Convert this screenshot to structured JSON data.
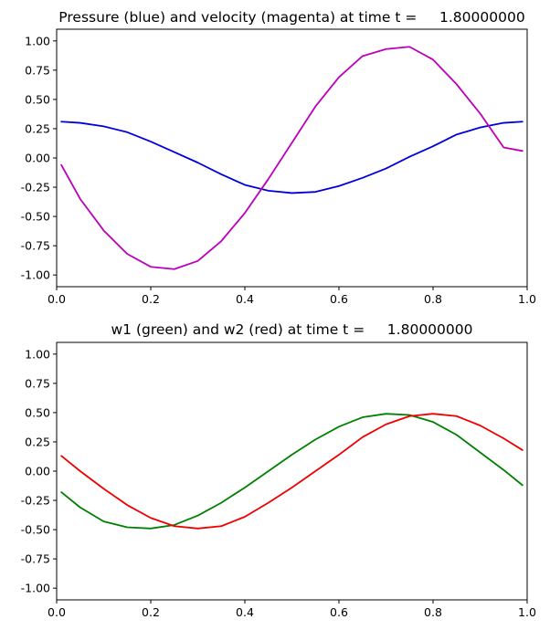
{
  "chart_data": [
    {
      "type": "line",
      "title": "Pressure (blue) and velocity (magenta) at time t =     1.80000000",
      "xlabel": "",
      "ylabel": "",
      "xlim": [
        0,
        1
      ],
      "ylim": [
        -1.1,
        1.1
      ],
      "xticks": [
        "0.0",
        "0.2",
        "0.4",
        "0.6",
        "0.8",
        "1.0"
      ],
      "yticks": [
        "-1.00",
        "-0.75",
        "-0.50",
        "-0.25",
        "0.00",
        "0.25",
        "0.50",
        "0.75",
        "1.00"
      ],
      "grid": false,
      "series": [
        {
          "color": "#0000dd",
          "x": [
            0.01,
            0.05,
            0.1,
            0.15,
            0.2,
            0.25,
            0.3,
            0.35,
            0.4,
            0.45,
            0.5,
            0.55,
            0.6,
            0.65,
            0.7,
            0.75,
            0.8,
            0.85,
            0.9,
            0.95,
            0.99
          ],
          "values": [
            0.31,
            0.3,
            0.27,
            0.22,
            0.14,
            0.05,
            -0.04,
            -0.14,
            -0.23,
            -0.28,
            -0.3,
            -0.29,
            -0.24,
            -0.17,
            -0.09,
            0.01,
            0.1,
            0.2,
            0.26,
            0.3,
            0.31
          ]
        },
        {
          "color": "#bb00bb",
          "x": [
            0.01,
            0.05,
            0.1,
            0.15,
            0.2,
            0.25,
            0.3,
            0.35,
            0.4,
            0.45,
            0.5,
            0.55,
            0.6,
            0.65,
            0.7,
            0.75,
            0.8,
            0.85,
            0.9,
            0.95,
            0.99
          ],
          "values": [
            -0.06,
            -0.35,
            -0.62,
            -0.82,
            -0.93,
            -0.95,
            -0.88,
            -0.71,
            -0.47,
            -0.18,
            0.13,
            0.44,
            0.69,
            0.87,
            0.93,
            0.95,
            0.84,
            0.63,
            0.38,
            0.09,
            0.06
          ]
        }
      ]
    },
    {
      "type": "line",
      "title": "w1 (green) and w2 (red) at time t =     1.80000000",
      "xlabel": "",
      "ylabel": "",
      "xlim": [
        0,
        1
      ],
      "ylim": [
        -1.1,
        1.1
      ],
      "xticks": [
        "0.0",
        "0.2",
        "0.4",
        "0.6",
        "0.8",
        "1.0"
      ],
      "yticks": [
        "-1.00",
        "-0.75",
        "-0.50",
        "-0.25",
        "0.00",
        "0.25",
        "0.50",
        "0.75",
        "1.00"
      ],
      "grid": false,
      "series": [
        {
          "color": "#008000",
          "x": [
            0.01,
            0.05,
            0.1,
            0.15,
            0.2,
            0.25,
            0.3,
            0.35,
            0.4,
            0.45,
            0.5,
            0.55,
            0.6,
            0.65,
            0.7,
            0.75,
            0.8,
            0.85,
            0.9,
            0.95,
            0.99
          ],
          "values": [
            -0.18,
            -0.31,
            -0.43,
            -0.48,
            -0.49,
            -0.46,
            -0.38,
            -0.27,
            -0.14,
            0.0,
            0.14,
            0.27,
            0.38,
            0.46,
            0.49,
            0.48,
            0.42,
            0.31,
            0.16,
            0.01,
            -0.12
          ]
        },
        {
          "color": "#ee0000",
          "x": [
            0.01,
            0.05,
            0.1,
            0.15,
            0.2,
            0.25,
            0.3,
            0.35,
            0.4,
            0.45,
            0.5,
            0.55,
            0.6,
            0.65,
            0.7,
            0.75,
            0.8,
            0.85,
            0.9,
            0.95,
            0.99
          ],
          "values": [
            0.13,
            0.0,
            -0.15,
            -0.29,
            -0.4,
            -0.47,
            -0.49,
            -0.47,
            -0.39,
            -0.27,
            -0.14,
            0.0,
            0.14,
            0.29,
            0.4,
            0.47,
            0.49,
            0.47,
            0.39,
            0.28,
            0.18
          ]
        }
      ]
    }
  ]
}
